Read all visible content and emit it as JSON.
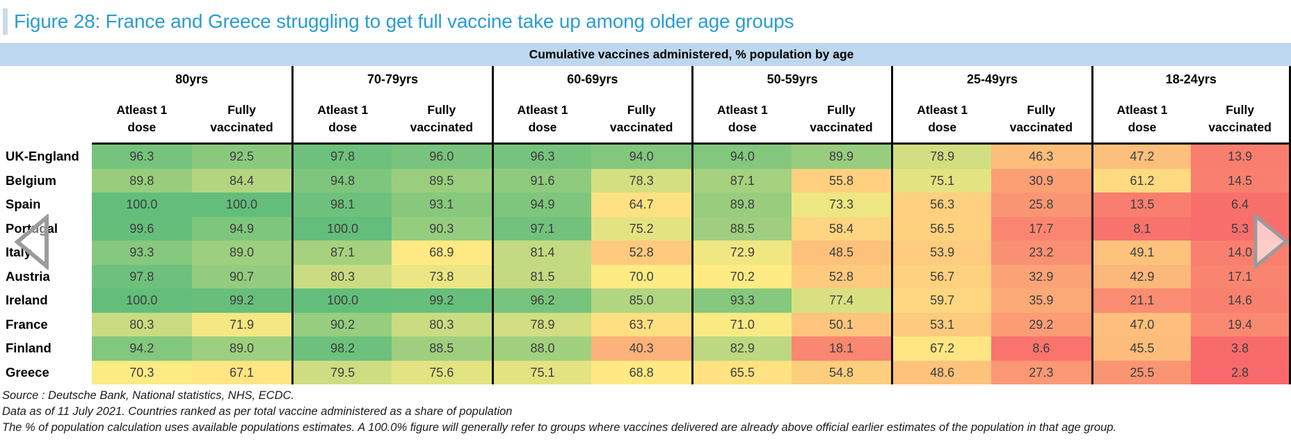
{
  "figure_title": "Figure 28: France and Greece struggling to get full vaccine take up among older age groups",
  "chart_data": {
    "type": "heatmap",
    "title": "Cumulative vaccines administered, % population by age",
    "column_groups": [
      "80yrs",
      "70-79yrs",
      "60-69yrs",
      "50-59yrs",
      "25-49yrs",
      "18-24yrs"
    ],
    "sub_columns": [
      [
        "Atleast 1",
        "dose"
      ],
      [
        "Fully",
        "vaccinated"
      ]
    ],
    "rows": [
      {
        "country": "UK-England",
        "values": [
          "96.3",
          "92.5",
          "97.8",
          "96.0",
          "96.3",
          "94.0",
          "94.0",
          "89.9",
          "78.9",
          "46.3",
          "47.2",
          "13.9"
        ]
      },
      {
        "country": "Belgium",
        "values": [
          "89.8",
          "84.4",
          "94.8",
          "89.5",
          "91.6",
          "78.3",
          "87.1",
          "55.8",
          "75.1",
          "30.9",
          "61.2",
          "14.5"
        ]
      },
      {
        "country": "Spain",
        "values": [
          "100.0",
          "100.0",
          "98.1",
          "93.1",
          "94.9",
          "64.7",
          "89.8",
          "73.3",
          "56.3",
          "25.8",
          "13.5",
          "6.4"
        ]
      },
      {
        "country": "Portugal",
        "values": [
          "99.6",
          "94.9",
          "100.0",
          "90.3",
          "97.1",
          "75.2",
          "88.5",
          "58.4",
          "56.5",
          "17.7",
          "8.1",
          "5.3"
        ]
      },
      {
        "country": "Italy",
        "values": [
          "93.3",
          "89.0",
          "87.1",
          "68.9",
          "81.4",
          "52.8",
          "72.9",
          "48.5",
          "53.9",
          "23.2",
          "49.1",
          "14.0"
        ]
      },
      {
        "country": "Austria",
        "values": [
          "97.8",
          "90.7",
          "80.3",
          "73.8",
          "81.5",
          "70.0",
          "70.2",
          "52.8",
          "56.7",
          "32.9",
          "42.9",
          "17.1"
        ]
      },
      {
        "country": "Ireland",
        "values": [
          "100.0",
          "99.2",
          "100.0",
          "99.2",
          "96.2",
          "85.0",
          "93.3",
          "77.4",
          "59.7",
          "35.9",
          "21.1",
          "14.6"
        ]
      },
      {
        "country": "France",
        "values": [
          "80.3",
          "71.9",
          "90.2",
          "80.3",
          "78.9",
          "63.7",
          "71.0",
          "50.1",
          "53.1",
          "29.2",
          "47.0",
          "19.4"
        ]
      },
      {
        "country": "Finland",
        "values": [
          "94.2",
          "89.0",
          "98.2",
          "88.5",
          "88.0",
          "40.3",
          "82.9",
          "18.1",
          "67.2",
          "8.6",
          "45.5",
          "3.8"
        ]
      },
      {
        "country": "Greece",
        "values": [
          "70.3",
          "67.1",
          "79.5",
          "75.6",
          "75.1",
          "68.8",
          "65.5",
          "54.8",
          "48.6",
          "27.3",
          "25.5",
          "2.8"
        ]
      }
    ],
    "color_scale": {
      "min_value": 2.8,
      "min_color": "#F8696B",
      "mid_value": 70,
      "mid_color": "#FFEB84",
      "max_value": 100,
      "max_color": "#63BE7B"
    },
    "legend_position": "none",
    "grid": "section dividers only"
  },
  "footnotes": [
    "Source : Deutsche Bank, National statistics, NHS, ECDC.",
    "Data as of 11 July 2021. Countries ranked as per total vaccine administered as a share of population",
    "The % of population calculation uses available populations estimates. A 100.0% figure will generally refer to groups where vaccines delivered are already above official earlier estimates of the population in that age group."
  ],
  "icons": {
    "prev": "triangle-left",
    "next": "triangle-right"
  },
  "colors": {
    "title_text": "#2B9CD3",
    "band_background": "#BDD7EE",
    "section_border": "#0A0A0A",
    "cell_text": "#3D3D3D"
  }
}
